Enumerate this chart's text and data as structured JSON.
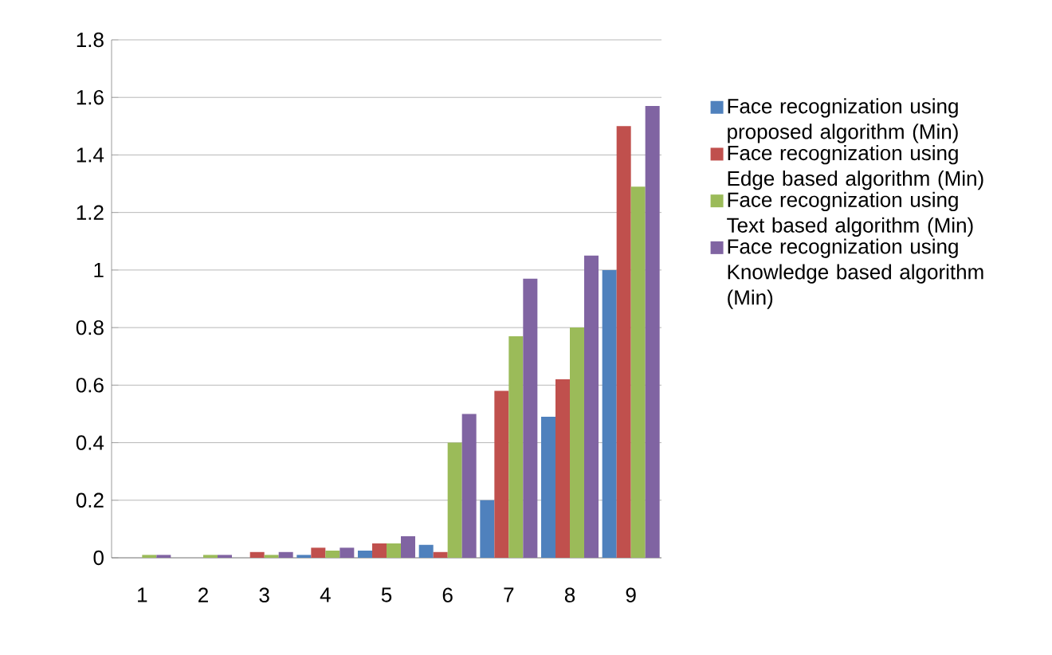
{
  "chart_data": {
    "type": "bar",
    "categories": [
      "1",
      "2",
      "3",
      "4",
      "5",
      "6",
      "7",
      "8",
      "9"
    ],
    "series": [
      {
        "name": "Face recognization using proposed algorithm (Min)",
        "color": "#4f81bd",
        "values": [
          0,
          0,
          0,
          0.01,
          0.025,
          0.045,
          0.2,
          0.49,
          1.0
        ]
      },
      {
        "name": "Face recognization using Edge based algorithm (Min)",
        "color": "#c0504d",
        "values": [
          0,
          0,
          0.02,
          0.035,
          0.05,
          0.02,
          0.58,
          0.62,
          1.5
        ]
      },
      {
        "name": "Face recognization using Text based algorithm (Min)",
        "color": "#9bbb59",
        "values": [
          0.01,
          0.01,
          0.01,
          0.025,
          0.05,
          0.4,
          0.77,
          0.8,
          1.29
        ]
      },
      {
        "name": "Face recognization using Knowledge based algorithm (Min)",
        "color": "#8064a2",
        "values": [
          0.01,
          0.01,
          0.02,
          0.035,
          0.075,
          0.5,
          0.97,
          1.05,
          1.57
        ]
      }
    ],
    "ylim": [
      0,
      1.8
    ],
    "yticks": [
      0,
      0.2,
      0.4,
      0.6,
      0.8,
      1,
      1.2,
      1.4,
      1.6,
      1.8
    ],
    "grid": "y",
    "legend": "right"
  }
}
